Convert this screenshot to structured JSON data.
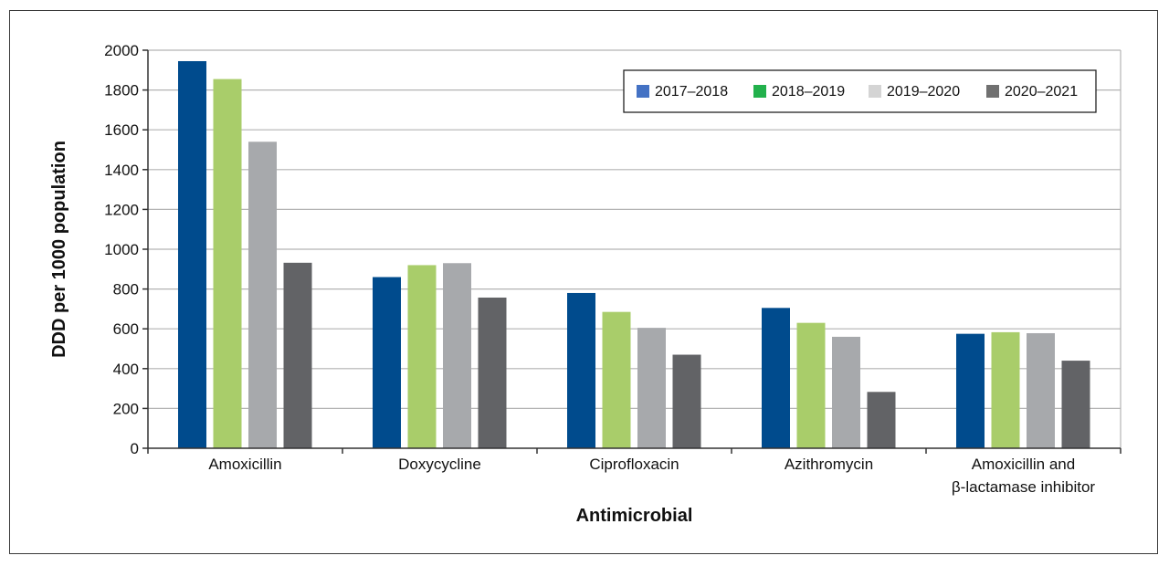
{
  "chart_data": {
    "type": "bar",
    "title": "",
    "xlabel": "Antimicrobial",
    "ylabel": "DDD per 1000 population",
    "ylim": [
      0,
      2000
    ],
    "yticks": [
      0,
      200,
      400,
      600,
      800,
      1000,
      1200,
      1400,
      1600,
      1800,
      2000
    ],
    "ytick_labels": [
      "0",
      "200",
      "400",
      "600",
      "800",
      "1000",
      "1200",
      "1400",
      "1600",
      "1800",
      "2000"
    ],
    "grid": true,
    "legend_position": "top-right",
    "categories": [
      [
        "Amoxicillin"
      ],
      [
        "Doxycycline"
      ],
      [
        "Ciprofloxacin"
      ],
      [
        "Azithromycin"
      ],
      [
        "Amoxicillin and",
        "β-lactamase inhibitor"
      ]
    ],
    "series": [
      {
        "name": "2017–2018",
        "color": "#004b8d",
        "legend_color": "#4472c4",
        "values": [
          1945,
          860,
          780,
          705,
          575
        ]
      },
      {
        "name": "2018–2019",
        "color": "#a9cd6a",
        "legend_color": "#22b14c",
        "values": [
          1855,
          920,
          685,
          630,
          583
        ]
      },
      {
        "name": "2019–2020",
        "color": "#a7a9ac",
        "legend_color": "#d4d4d4",
        "values": [
          1540,
          930,
          605,
          560,
          578
        ]
      },
      {
        "name": "2020–2021",
        "color": "#626366",
        "legend_color": "#707070",
        "values": [
          932,
          757,
          470,
          283,
          440
        ]
      }
    ]
  }
}
